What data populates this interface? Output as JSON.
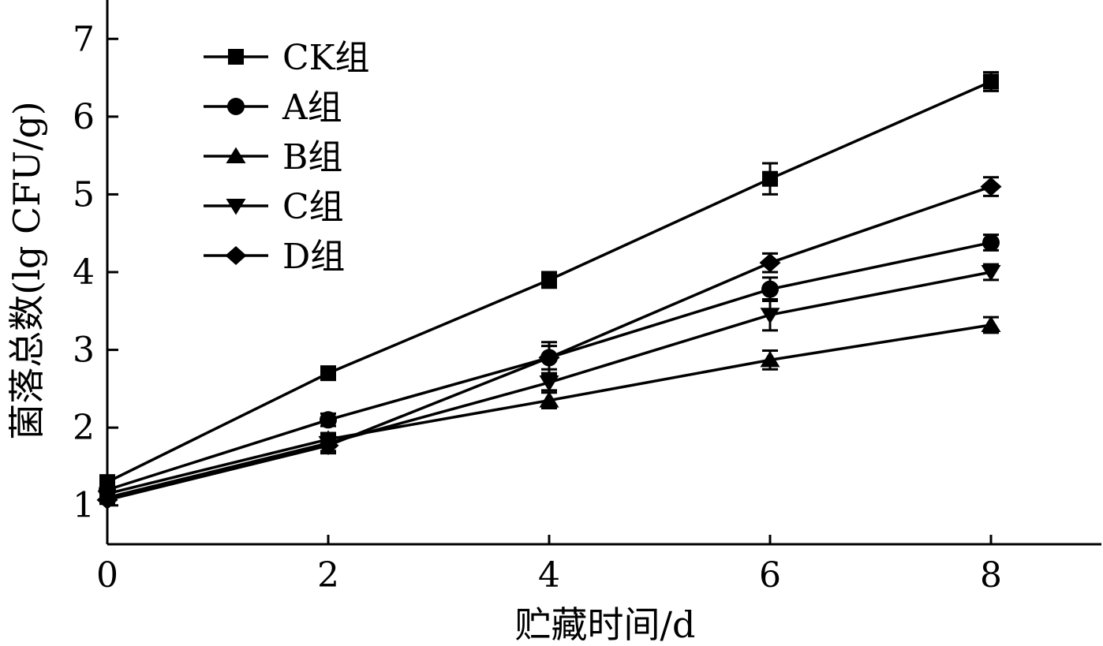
{
  "chart_data": {
    "type": "line",
    "title": "",
    "xlabel": "贮藏时间/d",
    "ylabel": "菌落总数(lg CFU/g)",
    "xlim": [
      0,
      9
    ],
    "ylim": [
      0.5,
      7.5
    ],
    "x_ticks": [
      0,
      2,
      4,
      6,
      8
    ],
    "y_ticks": [
      1,
      2,
      3,
      4,
      5,
      6,
      7
    ],
    "x_tick_labels": [
      "0",
      "2",
      "4",
      "6",
      "8"
    ],
    "y_tick_labels": [
      "1",
      "2",
      "3",
      "4",
      "5",
      "6",
      "7"
    ],
    "x": [
      0,
      2,
      4,
      6,
      8
    ],
    "grid": false,
    "legend_position": "top-left",
    "series": [
      {
        "name": "CK组",
        "marker": "square",
        "values": [
          1.3,
          2.7,
          3.9,
          5.2,
          6.45
        ],
        "errors": [
          0.05,
          0.08,
          0.1,
          0.2,
          0.12
        ]
      },
      {
        "name": "A组",
        "marker": "circle",
        "values": [
          1.2,
          2.1,
          2.9,
          3.78,
          4.38
        ],
        "errors": [
          0.05,
          0.08,
          0.2,
          0.15,
          0.1
        ]
      },
      {
        "name": "B组",
        "marker": "triangle-up",
        "values": [
          1.15,
          1.85,
          2.35,
          2.87,
          3.32
        ],
        "errors": [
          0.05,
          0.08,
          0.1,
          0.12,
          0.1
        ]
      },
      {
        "name": "C组",
        "marker": "triangle-down",
        "values": [
          1.1,
          1.8,
          2.58,
          3.45,
          4.0
        ],
        "errors": [
          0.05,
          0.1,
          0.1,
          0.2,
          0.1
        ]
      },
      {
        "name": "D组",
        "marker": "diamond",
        "values": [
          1.07,
          1.77,
          2.9,
          4.12,
          5.1
        ],
        "errors": [
          0.05,
          0.1,
          0.15,
          0.12,
          0.12
        ]
      }
    ]
  }
}
